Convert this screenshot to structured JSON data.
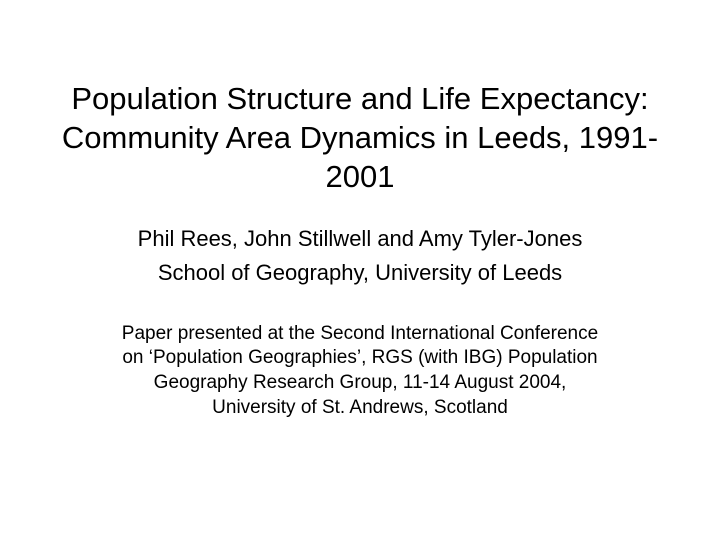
{
  "slide": {
    "title": "Population Structure and Life Expectancy: Community Area Dynamics in Leeds, 1991-2001",
    "authors": "Phil Rees, John Stillwell and Amy Tyler-Jones",
    "affiliation": "School of Geography, University of Leeds",
    "conference": "Paper presented at the Second International Conference on ‘Population Geographies’, RGS (with IBG) Population Geography Research Group, 11-14 August 2004, University of St. Andrews, Scotland"
  },
  "styling": {
    "background_color": "#ffffff",
    "text_color": "#000000",
    "font_family": "Arial",
    "title_fontsize": 31,
    "authors_fontsize": 22,
    "conference_fontsize": 19,
    "slide_width": 720,
    "slide_height": 540
  }
}
